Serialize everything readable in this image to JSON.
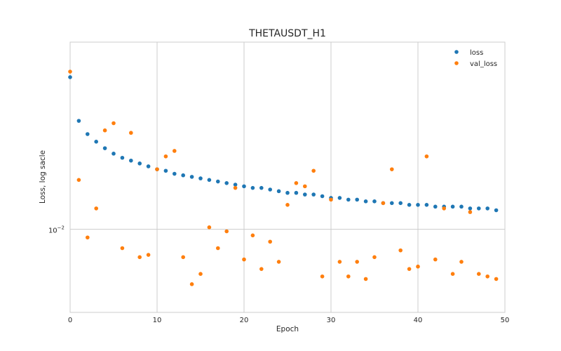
{
  "chart_data": {
    "type": "scatter",
    "title": "THETAUSDT_H1",
    "xlabel": "Epoch",
    "ylabel": "Loss, log sacle",
    "xlim": [
      0,
      50
    ],
    "ylim": [
      0.0066,
      0.0255
    ],
    "yscale": "log",
    "grid": true,
    "legend_position": "top-right",
    "x_ticks": [
      0,
      10,
      20,
      30,
      40,
      50
    ],
    "y_ticks": [
      {
        "value": 0.01,
        "label": "10",
        "exponent": "−2"
      }
    ],
    "series": [
      {
        "name": "loss",
        "color": "#1f77b4",
        "x": [
          0,
          1,
          2,
          3,
          4,
          5,
          6,
          7,
          8,
          9,
          10,
          11,
          12,
          13,
          14,
          15,
          16,
          17,
          18,
          19,
          20,
          21,
          22,
          23,
          24,
          25,
          26,
          27,
          28,
          29,
          30,
          31,
          32,
          33,
          34,
          35,
          36,
          37,
          38,
          39,
          40,
          41,
          42,
          43,
          44,
          45,
          46,
          47,
          48,
          49
        ],
        "y": [
          0.0214,
          0.0172,
          0.0161,
          0.0155,
          0.015,
          0.0146,
          0.0143,
          0.0141,
          0.0139,
          0.0137,
          0.0135,
          0.0134,
          0.0132,
          0.0131,
          0.013,
          0.0129,
          0.0128,
          0.0127,
          0.0126,
          0.0125,
          0.0124,
          0.0123,
          0.0123,
          0.0122,
          0.0121,
          0.012,
          0.012,
          0.0119,
          0.0119,
          0.0118,
          0.0117,
          0.0117,
          0.0116,
          0.0116,
          0.0115,
          0.0115,
          0.0114,
          0.0114,
          0.0114,
          0.0113,
          0.0113,
          0.0113,
          0.0112,
          0.0112,
          0.0112,
          0.0112,
          0.0111,
          0.0111,
          0.0111,
          0.011
        ]
      },
      {
        "name": "val_loss",
        "color": "#ff7f0e",
        "x": [
          0,
          1,
          2,
          3,
          4,
          5,
          6,
          7,
          8,
          9,
          10,
          11,
          12,
          13,
          14,
          15,
          16,
          17,
          18,
          19,
          20,
          21,
          22,
          23,
          24,
          25,
          26,
          27,
          28,
          29,
          30,
          31,
          32,
          33,
          34,
          35,
          36,
          37,
          38,
          39,
          40,
          41,
          42,
          43,
          44,
          45,
          46,
          47,
          48,
          49
        ],
        "y": [
          0.022,
          0.0128,
          0.0096,
          0.0111,
          0.0164,
          0.017,
          0.0091,
          0.0162,
          0.0087,
          0.0088,
          0.0135,
          0.0144,
          0.0148,
          0.0087,
          0.0076,
          0.008,
          0.0101,
          0.0091,
          0.0099,
          0.0123,
          0.0086,
          0.0097,
          0.0082,
          0.0094,
          0.0085,
          0.0113,
          0.0126,
          0.0124,
          0.0134,
          0.0079,
          0.0116,
          0.0085,
          0.0079,
          0.0085,
          0.0078,
          0.0087,
          0.0114,
          0.0135,
          0.009,
          0.0082,
          0.0083,
          0.0144,
          0.0086,
          0.0111,
          0.008,
          0.0085,
          0.0109,
          0.008,
          0.0079,
          0.0078
        ]
      }
    ]
  }
}
